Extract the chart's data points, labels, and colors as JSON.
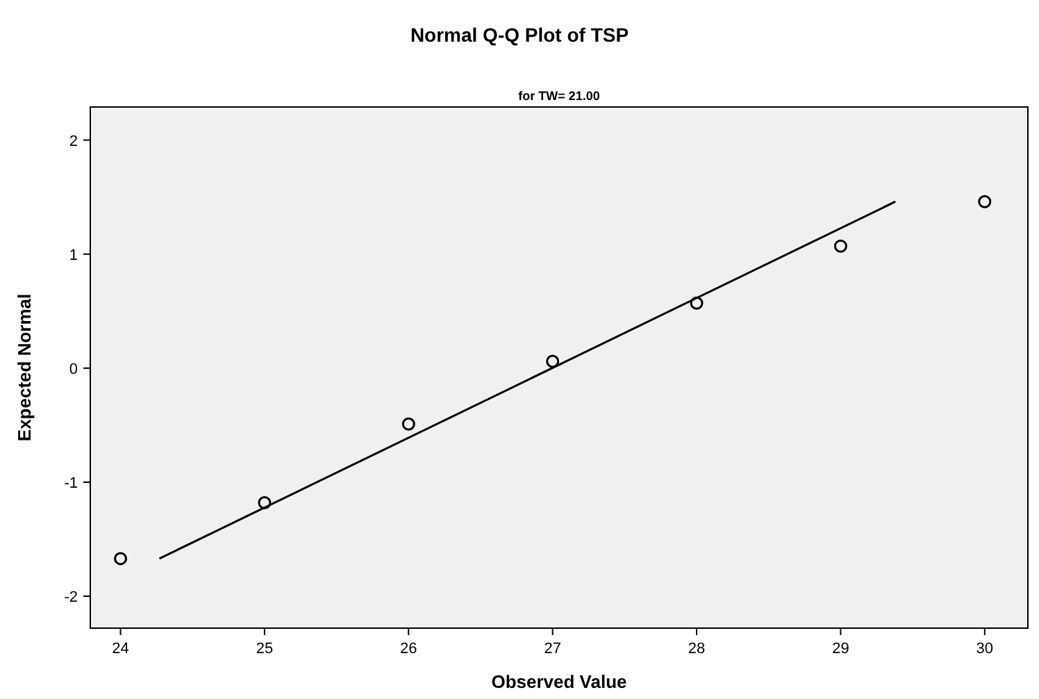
{
  "chart_data": {
    "type": "scatter",
    "title": "Normal Q-Q Plot of TSP",
    "subtitle": "for TW= 21.00",
    "xlabel": "Observed Value",
    "ylabel": "Expected Normal",
    "xlim": [
      23.79,
      30.3
    ],
    "ylim": [
      -2.28,
      2.29
    ],
    "xticks": [
      24,
      25,
      26,
      27,
      28,
      29,
      30
    ],
    "yticks": [
      -2,
      -1,
      0,
      1,
      2
    ],
    "grid": false,
    "series": [
      {
        "color": "#000000",
        "marker": "circle",
        "x": [
          24,
          25,
          26,
          27,
          28,
          29,
          30
        ],
        "values": [
          -1.67,
          -1.18,
          -0.49,
          0.06,
          0.57,
          1.07,
          1.46
        ]
      },
      {
        "type": "line",
        "color": "#000000",
        "marker": "none",
        "line_style": "solid",
        "x": [
          24.27,
          29.38
        ],
        "values": [
          -1.67,
          1.46
        ]
      }
    ]
  }
}
